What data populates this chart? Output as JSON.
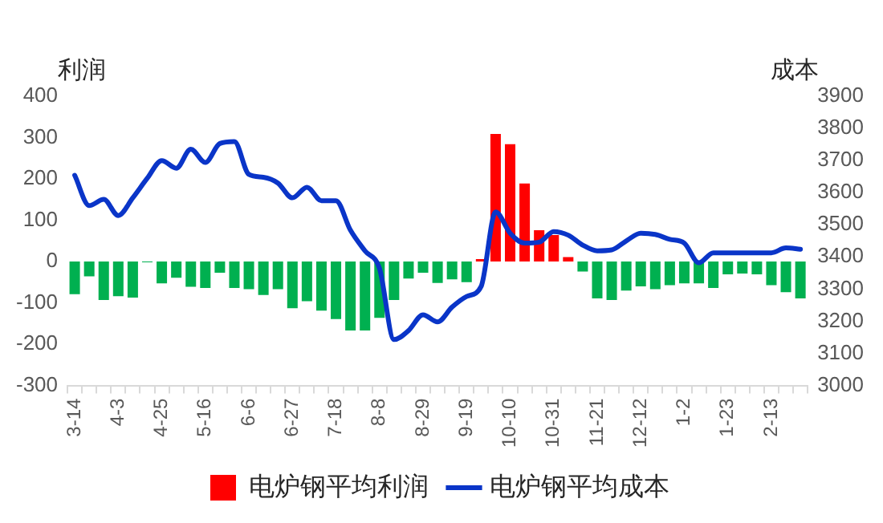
{
  "chart_data": {
    "type": "bar",
    "ylabel": "利润",
    "y2label": "成本",
    "categories": [
      "3-14",
      null,
      null,
      "4-3",
      null,
      null,
      "4-25",
      null,
      null,
      "5-16",
      null,
      null,
      "6-6",
      null,
      null,
      "6-27",
      null,
      null,
      "7-18",
      null,
      null,
      "8-8",
      null,
      null,
      "8-29",
      null,
      null,
      "9-19",
      null,
      null,
      "10-10",
      null,
      null,
      "10-31",
      null,
      null,
      "11-21",
      null,
      null,
      "12-12",
      null,
      null,
      "1-2",
      null,
      null,
      "1-23",
      null,
      null,
      "2-13",
      null,
      null
    ],
    "series": [
      {
        "name": "电炉钢平均利润",
        "color": "#ff0000",
        "colors": [
          "#00b050",
          "#00b050",
          "#00b050",
          "#00b050",
          "#00b050",
          "#00b050",
          "#00b050",
          "#00b050",
          "#00b050",
          "#00b050",
          "#00b050",
          "#00b050",
          "#00b050",
          "#00b050",
          "#00b050",
          "#00b050",
          "#00b050",
          "#00b050",
          "#00b050",
          "#00b050",
          "#00b050",
          "#00b050",
          "#00b050",
          "#00b050",
          "#00b050",
          "#00b050",
          "#00b050",
          "#00b050",
          "#ff0000",
          "#ff0000",
          "#ff0000",
          "#ff0000",
          "#ff0000",
          "#ff0000",
          "#ff0000",
          "#00b050",
          "#00b050",
          "#00b050",
          "#00b050",
          "#00b050",
          "#00b050",
          "#00b050",
          "#00b050",
          "#00b050",
          "#00b050",
          "#00b050",
          "#00b050",
          "#00b050",
          "#00b050",
          "#00b050",
          "#00b050"
        ],
        "values": [
          -79,
          -36,
          -93,
          -84,
          -87,
          -2,
          -53,
          -39,
          -61,
          -64,
          -27,
          -64,
          -67,
          -81,
          -67,
          -113,
          -96,
          -119,
          -139,
          -167,
          -167,
          -136,
          -93,
          -41,
          -27,
          -52,
          -43,
          -50,
          6,
          309,
          284,
          189,
          76,
          64,
          11,
          -24,
          -89,
          -93,
          -70,
          -60,
          -67,
          -57,
          -53,
          -53,
          -64,
          -31,
          -29,
          -31,
          -57,
          -74,
          -89
        ]
      },
      {
        "name": "电炉钢平均成本",
        "type": "line",
        "axis": "y2",
        "color": "#0a35c8",
        "values": [
          3654,
          3560,
          3579,
          3529,
          3584,
          3645,
          3700,
          3676,
          3735,
          3694,
          3753,
          3759,
          3657,
          3648,
          3630,
          3584,
          3617,
          3575,
          3575,
          3483,
          3419,
          3364,
          3143,
          3171,
          3220,
          3198,
          3244,
          3277,
          3308,
          3540,
          3474,
          3443,
          3446,
          3479,
          3468,
          3437,
          3419,
          3422,
          3450,
          3474,
          3470,
          3455,
          3443,
          3382,
          3413,
          3413,
          3413,
          3413,
          3413,
          3428,
          3424
        ]
      }
    ],
    "ylim": [
      -300,
      400
    ],
    "yticks": [
      -300,
      -200,
      -100,
      0,
      100,
      200,
      300,
      400
    ],
    "y2lim": [
      3000,
      3900
    ],
    "y2ticks": [
      3000,
      3100,
      3200,
      3300,
      3400,
      3500,
      3600,
      3700,
      3800,
      3900
    ],
    "legend": "bottom",
    "marker": "none"
  }
}
